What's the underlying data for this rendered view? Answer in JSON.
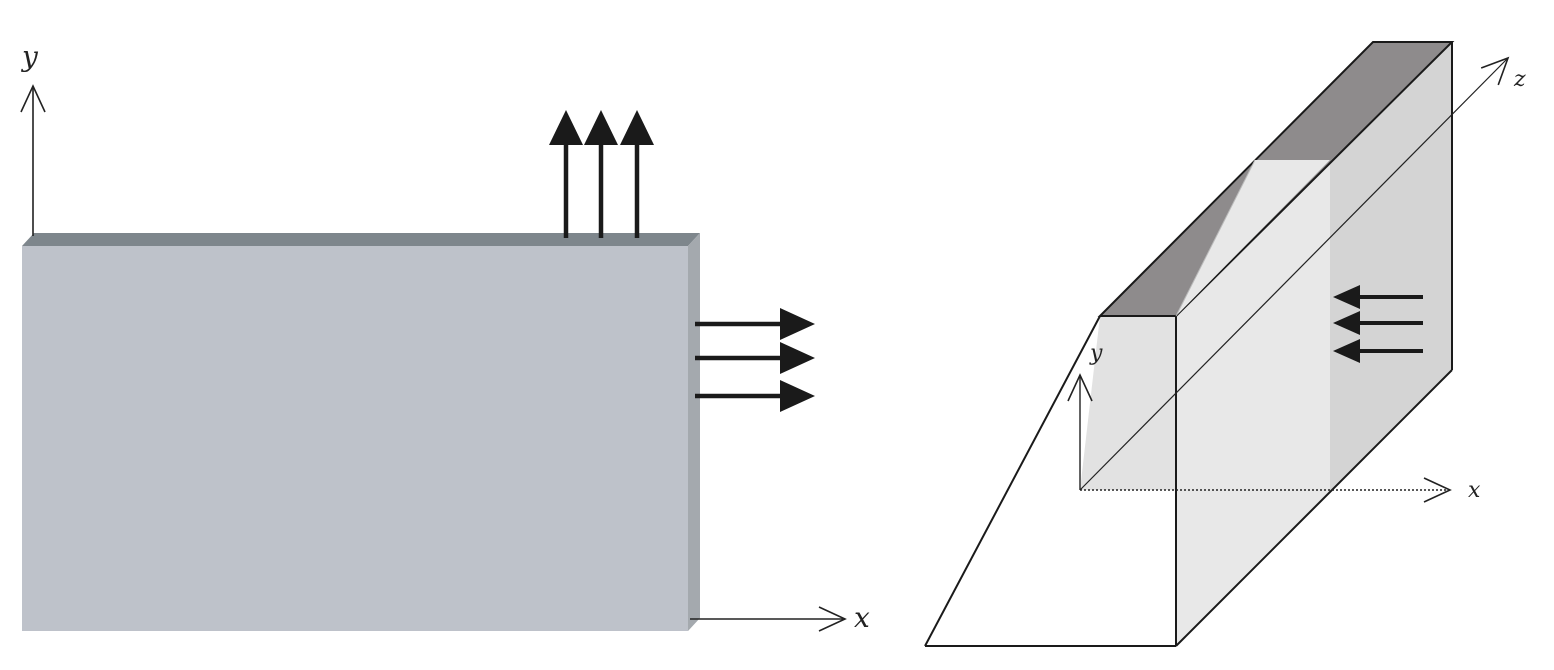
{
  "left_panel": {
    "axes": {
      "x_label": "x",
      "y_label": "y"
    },
    "colors": {
      "plate_face": "#bec2ca",
      "plate_top_edge": "#7e868c",
      "plate_side_edge": "#a4a9ae",
      "arrow": "#1a1a1a"
    }
  },
  "right_panel": {
    "axes": {
      "x_label": "x",
      "y_label": "y",
      "z_label": "z"
    },
    "colors": {
      "top_edge_dark": "#8e8b8c",
      "front_face": "#e8e8e8",
      "side_face": "#d4d4d4",
      "outline": "#1a1a1a",
      "arrow": "#1a1a1a"
    }
  }
}
